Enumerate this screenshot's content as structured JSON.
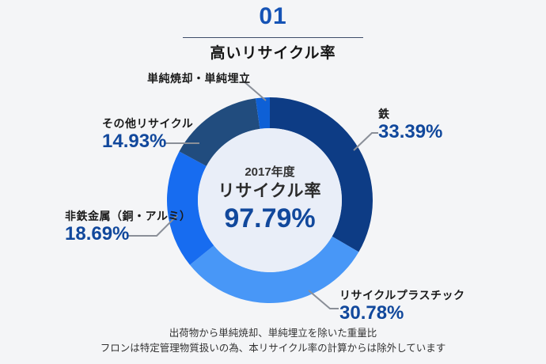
{
  "header": {
    "number": "01",
    "title": "高いリサイクル率"
  },
  "chart_data": {
    "type": "pie",
    "variant": "donut",
    "title": "高いリサイクル率",
    "start_angle": "top",
    "direction": "clockwise",
    "segments": [
      {
        "label": "鉄",
        "value": 33.39,
        "display": "33.39%",
        "color": "#0d3c85"
      },
      {
        "label": "リサイクルプラスチック",
        "value": 30.78,
        "display": "30.78%",
        "color": "#4897f7"
      },
      {
        "label": "非鉄金属（銅・アルミ）",
        "value": 18.69,
        "display": "18.69%",
        "color": "#176cf0"
      },
      {
        "label": "その他リサイクル",
        "value": 14.93,
        "display": "14.93%",
        "color": "#214c7e"
      },
      {
        "label": "単純焼却・単純埋立",
        "value": 2.21,
        "display": "",
        "color": "#0e60d6"
      }
    ],
    "center": {
      "year": "2017年度",
      "label": "リサイクル率",
      "value": "97.79%"
    }
  },
  "footnotes": {
    "line1": "出荷物から単純焼却、単純埋立を除いた重量比",
    "line2": "フロンは特定管理物質扱いの為、本リサイクル率の計算からは除外しています"
  },
  "colors": {
    "accent_blue": "#1553b5",
    "percent_blue": "#11489c",
    "inner_circle": "#e9eef8",
    "background": "#f4f5f7",
    "leader_line": "#8a8f98"
  }
}
